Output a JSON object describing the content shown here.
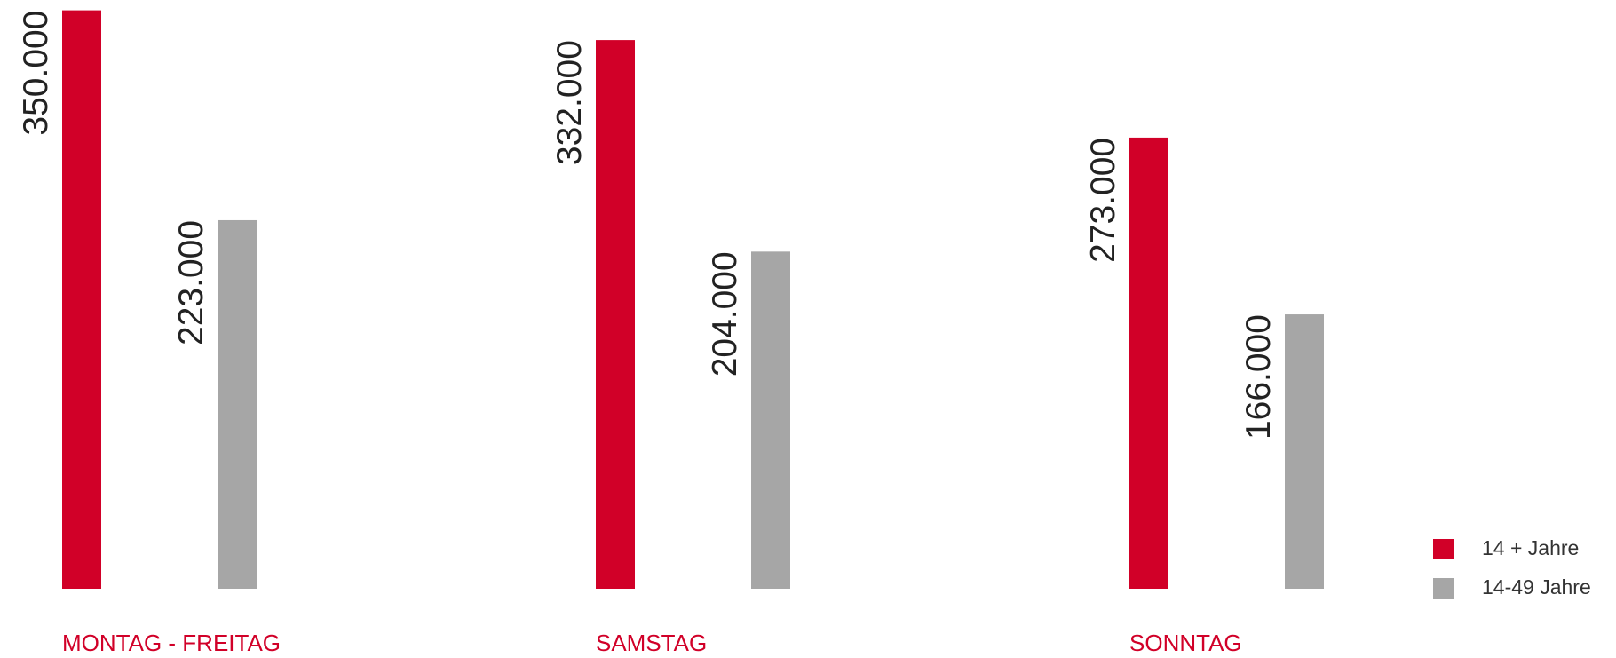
{
  "chart_data": {
    "type": "bar",
    "categories": [
      "MONTAG - FREITAG",
      "SAMSTAG",
      "SONNTAG"
    ],
    "series": [
      {
        "name": "14 + Jahre",
        "color": "#d10028",
        "values": [
          350000,
          332000,
          273000
        ],
        "value_labels": [
          "350.000",
          "332.000",
          "273.000"
        ]
      },
      {
        "name": "14-49 Jahre",
        "color": "#a6a6a6",
        "values": [
          223000,
          204000,
          166000
        ],
        "value_labels": [
          "223.000",
          "204.000",
          "166.000"
        ]
      }
    ],
    "ylim": [
      0,
      350000
    ],
    "legend": "bottom-right"
  }
}
